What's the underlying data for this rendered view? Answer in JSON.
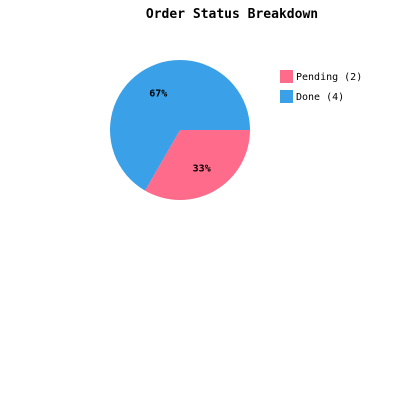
{
  "chart_data": {
    "type": "pie",
    "title": "Order Status Breakdown",
    "slices": [
      {
        "label": "Pending",
        "count": 2,
        "legend": "Pending (2)",
        "percent_label": "33%",
        "color": "#ff6b8a"
      },
      {
        "label": "Done",
        "count": 4,
        "legend": "Done (4)",
        "percent_label": "67%",
        "color": "#3aa0e8"
      }
    ],
    "legend_position": "right"
  }
}
